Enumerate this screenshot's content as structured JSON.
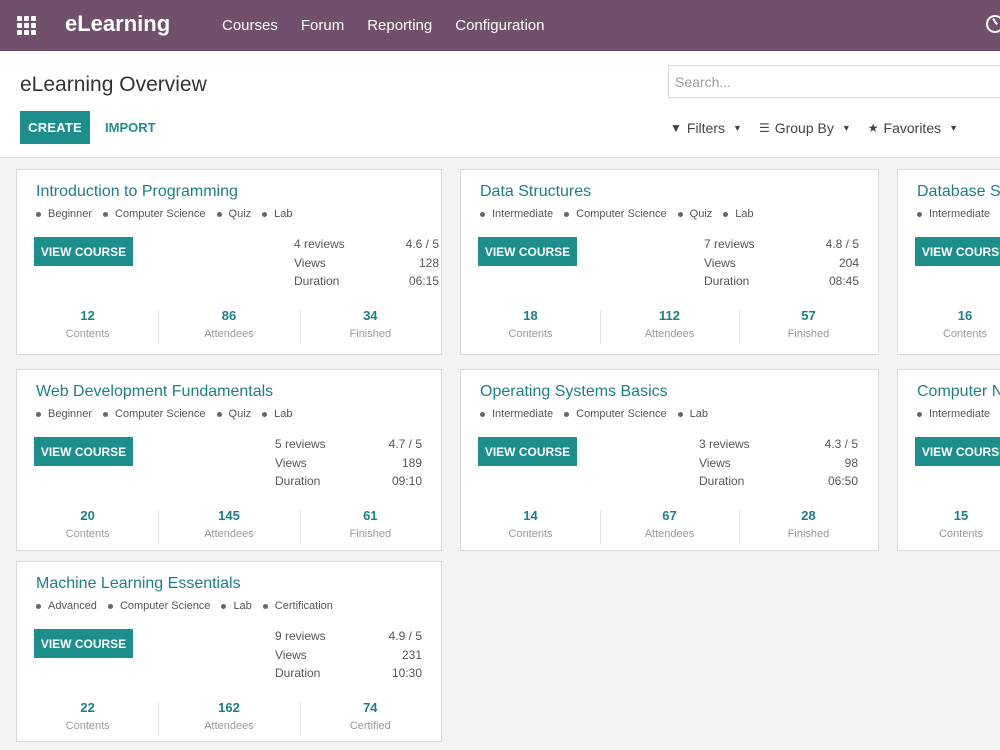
{
  "navbar": {
    "brand": "eLearning",
    "menu": [
      "Courses",
      "Forum",
      "Reporting",
      "Configuration"
    ]
  },
  "control": {
    "title": "eLearning Overview",
    "search_placeholder": "Search...",
    "create_label": "CREATE",
    "import_label": "IMPORT",
    "filters_label": "Filters",
    "groupby_label": "Group By",
    "favorites_label": "Favorites"
  },
  "colors": {
    "navbar": "#71506b",
    "accent": "#1c8e8c",
    "title": "#1b7f85"
  },
  "cards": [
    {
      "title": "Introduction to Programming",
      "tags": [
        "Beginner",
        "Computer Science",
        "Quiz",
        "Lab"
      ],
      "button": "VIEW COURSE",
      "stats": [
        [
          "4 reviews",
          "4.6 / 5"
        ],
        [
          "Views",
          "128"
        ],
        [
          "Duration",
          "06:15"
        ]
      ],
      "metrics": [
        [
          "12",
          "Contents"
        ],
        [
          "86",
          "Attendees"
        ],
        [
          "34",
          "Finished"
        ]
      ]
    },
    {
      "title": "Data Structures",
      "tags": [
        "Intermediate",
        "Computer Science",
        "Quiz",
        "Lab"
      ],
      "button": "VIEW COURSE",
      "stats": [
        [
          "7 reviews",
          "4.8 / 5"
        ],
        [
          "Views",
          "204"
        ],
        [
          "Duration",
          "08:45"
        ]
      ],
      "metrics": [
        [
          "18",
          "Contents"
        ],
        [
          "112",
          "Attendees"
        ],
        [
          "57",
          "Finished"
        ]
      ]
    },
    {
      "title": "Database Sy",
      "tags": [
        "Intermediate"
      ],
      "button": "VIEW COURSE",
      "stats": [],
      "metrics": [
        [
          "16",
          "Contents"
        ]
      ]
    },
    {
      "title": "Web Development Fundamentals",
      "tags": [
        "Beginner",
        "Computer Science",
        "Quiz",
        "Lab"
      ],
      "button": "VIEW COURSE",
      "stats": [
        [
          "5 reviews",
          "4.7 / 5"
        ],
        [
          "Views",
          "189"
        ],
        [
          "Duration",
          "09:10"
        ]
      ],
      "metrics": [
        [
          "20",
          "Contents"
        ],
        [
          "145",
          "Attendees"
        ],
        [
          "61",
          "Finished"
        ]
      ]
    },
    {
      "title": "Operating Systems Basics",
      "tags": [
        "Intermediate",
        "Computer Science",
        "Lab"
      ],
      "button": "VIEW COURSE",
      "stats": [
        [
          "3 reviews",
          "4.3 / 5"
        ],
        [
          "Views",
          "98"
        ],
        [
          "Duration",
          "06:50"
        ]
      ],
      "metrics": [
        [
          "14",
          "Contents"
        ],
        [
          "67",
          "Attendees"
        ],
        [
          "28",
          "Finished"
        ]
      ]
    },
    {
      "title": "Computer N",
      "tags": [
        "Intermediate"
      ],
      "button": "VIEW COURSE",
      "stats": [],
      "metrics": [
        [
          "15",
          "Contents"
        ]
      ]
    },
    {
      "title": "Machine Learning Essentials",
      "tags": [
        "Advanced",
        "Computer Science",
        "Lab",
        "Certification"
      ],
      "button": "VIEW COURSE",
      "stats": [
        [
          "9 reviews",
          "4.9 / 5"
        ],
        [
          "Views",
          "231"
        ],
        [
          "Duration",
          "10:30"
        ]
      ],
      "metrics": [
        [
          "22",
          "Contents"
        ],
        [
          "162",
          "Attendees"
        ],
        [
          "74",
          "Certified"
        ]
      ]
    }
  ]
}
